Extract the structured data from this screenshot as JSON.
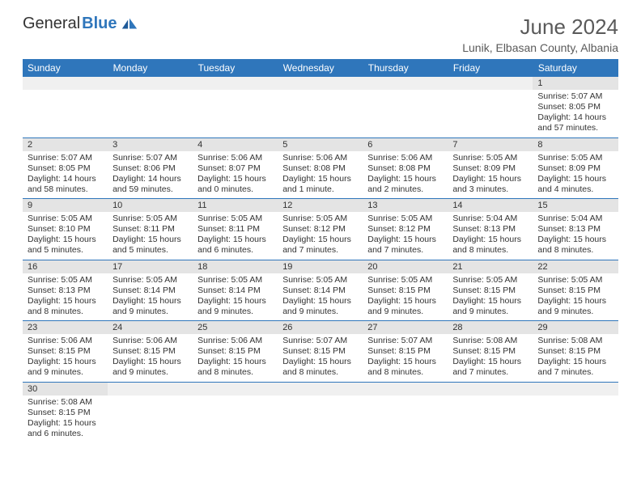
{
  "brand": {
    "part1": "General",
    "part2": "Blue"
  },
  "title": "June 2024",
  "location": "Lunik, Elbasan County, Albania",
  "colors": {
    "header_bg": "#2f76bb",
    "header_text": "#ffffff",
    "daynum_bg": "#e4e4e4",
    "border": "#2f76bb",
    "title_color": "#5a5a5a"
  },
  "weekdays": [
    "Sunday",
    "Monday",
    "Tuesday",
    "Wednesday",
    "Thursday",
    "Friday",
    "Saturday"
  ],
  "weeks": [
    [
      null,
      null,
      null,
      null,
      null,
      null,
      {
        "d": "1",
        "sr": "5:07 AM",
        "ss": "8:05 PM",
        "dl": "14 hours and 57 minutes."
      }
    ],
    [
      {
        "d": "2",
        "sr": "5:07 AM",
        "ss": "8:05 PM",
        "dl": "14 hours and 58 minutes."
      },
      {
        "d": "3",
        "sr": "5:07 AM",
        "ss": "8:06 PM",
        "dl": "14 hours and 59 minutes."
      },
      {
        "d": "4",
        "sr": "5:06 AM",
        "ss": "8:07 PM",
        "dl": "15 hours and 0 minutes."
      },
      {
        "d": "5",
        "sr": "5:06 AM",
        "ss": "8:08 PM",
        "dl": "15 hours and 1 minute."
      },
      {
        "d": "6",
        "sr": "5:06 AM",
        "ss": "8:08 PM",
        "dl": "15 hours and 2 minutes."
      },
      {
        "d": "7",
        "sr": "5:05 AM",
        "ss": "8:09 PM",
        "dl": "15 hours and 3 minutes."
      },
      {
        "d": "8",
        "sr": "5:05 AM",
        "ss": "8:09 PM",
        "dl": "15 hours and 4 minutes."
      }
    ],
    [
      {
        "d": "9",
        "sr": "5:05 AM",
        "ss": "8:10 PM",
        "dl": "15 hours and 5 minutes."
      },
      {
        "d": "10",
        "sr": "5:05 AM",
        "ss": "8:11 PM",
        "dl": "15 hours and 5 minutes."
      },
      {
        "d": "11",
        "sr": "5:05 AM",
        "ss": "8:11 PM",
        "dl": "15 hours and 6 minutes."
      },
      {
        "d": "12",
        "sr": "5:05 AM",
        "ss": "8:12 PM",
        "dl": "15 hours and 7 minutes."
      },
      {
        "d": "13",
        "sr": "5:05 AM",
        "ss": "8:12 PM",
        "dl": "15 hours and 7 minutes."
      },
      {
        "d": "14",
        "sr": "5:04 AM",
        "ss": "8:13 PM",
        "dl": "15 hours and 8 minutes."
      },
      {
        "d": "15",
        "sr": "5:04 AM",
        "ss": "8:13 PM",
        "dl": "15 hours and 8 minutes."
      }
    ],
    [
      {
        "d": "16",
        "sr": "5:05 AM",
        "ss": "8:13 PM",
        "dl": "15 hours and 8 minutes."
      },
      {
        "d": "17",
        "sr": "5:05 AM",
        "ss": "8:14 PM",
        "dl": "15 hours and 9 minutes."
      },
      {
        "d": "18",
        "sr": "5:05 AM",
        "ss": "8:14 PM",
        "dl": "15 hours and 9 minutes."
      },
      {
        "d": "19",
        "sr": "5:05 AM",
        "ss": "8:14 PM",
        "dl": "15 hours and 9 minutes."
      },
      {
        "d": "20",
        "sr": "5:05 AM",
        "ss": "8:15 PM",
        "dl": "15 hours and 9 minutes."
      },
      {
        "d": "21",
        "sr": "5:05 AM",
        "ss": "8:15 PM",
        "dl": "15 hours and 9 minutes."
      },
      {
        "d": "22",
        "sr": "5:05 AM",
        "ss": "8:15 PM",
        "dl": "15 hours and 9 minutes."
      }
    ],
    [
      {
        "d": "23",
        "sr": "5:06 AM",
        "ss": "8:15 PM",
        "dl": "15 hours and 9 minutes."
      },
      {
        "d": "24",
        "sr": "5:06 AM",
        "ss": "8:15 PM",
        "dl": "15 hours and 9 minutes."
      },
      {
        "d": "25",
        "sr": "5:06 AM",
        "ss": "8:15 PM",
        "dl": "15 hours and 8 minutes."
      },
      {
        "d": "26",
        "sr": "5:07 AM",
        "ss": "8:15 PM",
        "dl": "15 hours and 8 minutes."
      },
      {
        "d": "27",
        "sr": "5:07 AM",
        "ss": "8:15 PM",
        "dl": "15 hours and 8 minutes."
      },
      {
        "d": "28",
        "sr": "5:08 AM",
        "ss": "8:15 PM",
        "dl": "15 hours and 7 minutes."
      },
      {
        "d": "29",
        "sr": "5:08 AM",
        "ss": "8:15 PM",
        "dl": "15 hours and 7 minutes."
      }
    ],
    [
      {
        "d": "30",
        "sr": "5:08 AM",
        "ss": "8:15 PM",
        "dl": "15 hours and 6 minutes."
      },
      null,
      null,
      null,
      null,
      null,
      null
    ]
  ],
  "labels": {
    "sunrise": "Sunrise: ",
    "sunset": "Sunset: ",
    "daylight": "Daylight: "
  }
}
